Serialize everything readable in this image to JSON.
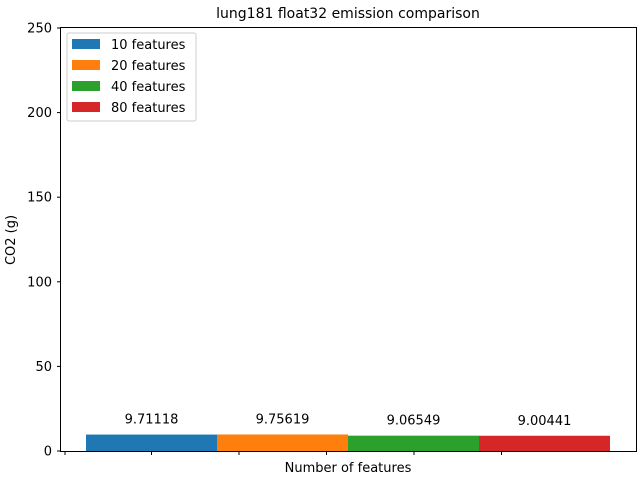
{
  "chart_data": {
    "type": "bar",
    "title": "lung181 float32 emission comparison",
    "xlabel": "Number of features",
    "ylabel": "CO2 (g)",
    "ylim": [
      0,
      250
    ],
    "yticks": [
      0,
      50,
      100,
      150,
      200,
      250
    ],
    "x_tick_labels": [
      "",
      "",
      "",
      "",
      ""
    ],
    "grid": false,
    "legend_position": "top-left",
    "series": [
      {
        "name": "10 features",
        "value": 9.71118,
        "label": "9.71118",
        "color": "#1f77b4"
      },
      {
        "name": "20 features",
        "value": 9.75619,
        "label": "9.75619",
        "color": "#ff7f0e"
      },
      {
        "name": "40 features",
        "value": 9.06549,
        "label": "9.06549",
        "color": "#2ca02c"
      },
      {
        "name": "80 features",
        "value": 9.00441,
        "label": "9.00441",
        "color": "#d62728"
      }
    ]
  }
}
